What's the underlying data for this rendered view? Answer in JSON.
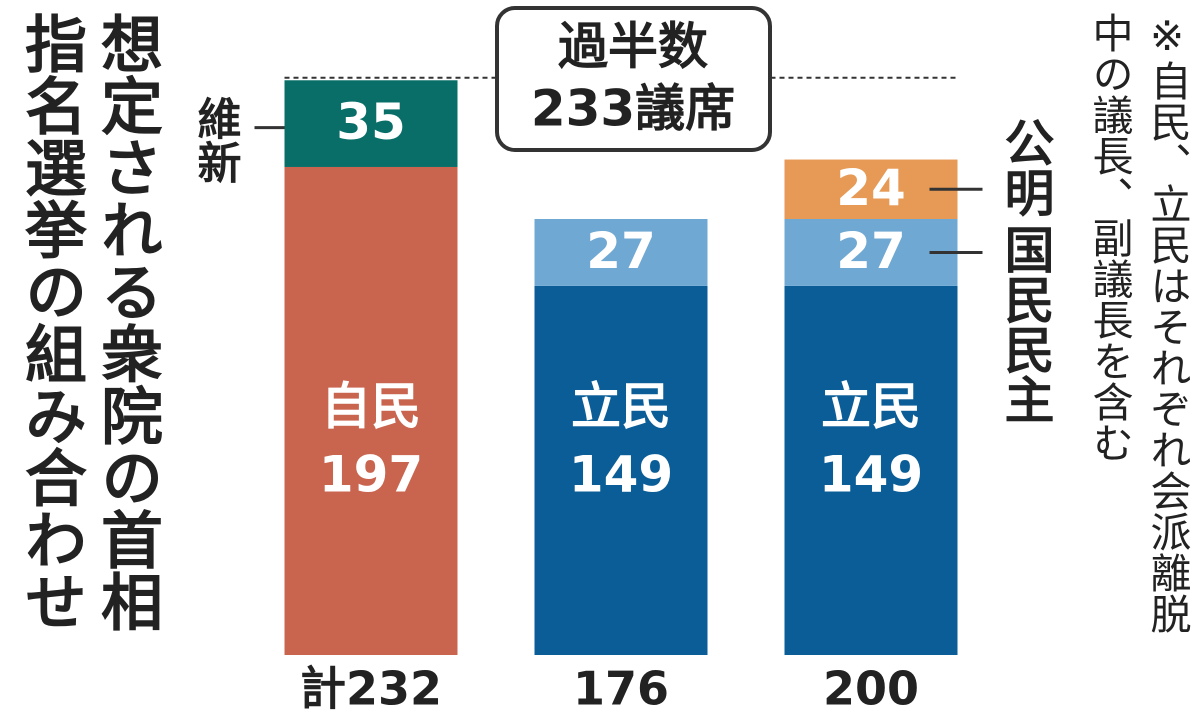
{
  "chart_data": {
    "type": "stacked-bar",
    "title_lines": [
      "想定される衆院の首相",
      "指名選挙の組み合わせ"
    ],
    "note_lines": [
      "※自民、立民はそれぞれ会派離脱",
      "中の議長、副議長を含む"
    ],
    "ylim": [
      0,
      264
    ],
    "reference_line": {
      "value": 233,
      "label_lines": [
        "過半数",
        "233議席"
      ]
    },
    "totals": [
      {
        "value": 232,
        "label": "計232"
      },
      176,
      200
    ],
    "series": [
      {
        "name": "自民",
        "color": "#c9644f",
        "values": [
          197,
          null,
          null
        ],
        "name_position": "inside"
      },
      {
        "name": "立民",
        "color": "#0a5d97",
        "values": [
          null,
          149,
          149
        ],
        "name_position": "inside"
      },
      {
        "name": "国民民主",
        "color": "#6fa8d3",
        "values": [
          null,
          27,
          27
        ],
        "name_position": "right"
      },
      {
        "name": "維新",
        "color": "#0a6e68",
        "values": [
          35,
          null,
          null
        ],
        "name_position": "left"
      },
      {
        "name": "公明",
        "color": "#e69a55",
        "values": [
          null,
          null,
          24
        ],
        "name_position": "right-above"
      }
    ]
  }
}
